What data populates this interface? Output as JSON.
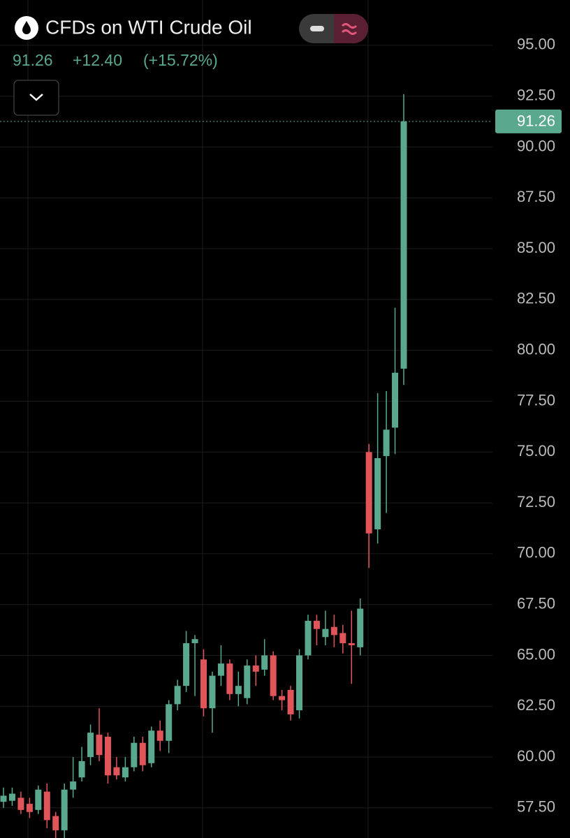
{
  "chart_data": {
    "type": "candlestick",
    "title": "CFDs on WTI Crude Oil",
    "last": {
      "value": 91.26,
      "label": "91.26"
    },
    "change": "+12.40",
    "change_pct": "(+15.72%)",
    "up_color": "#5aa98f",
    "down_color": "#e0555a",
    "grid": true,
    "ylim": [
      56.02,
      97.23
    ],
    "yticks": [
      {
        "value": 57.5,
        "label": "57.50"
      },
      {
        "value": 60,
        "label": "60.00"
      },
      {
        "value": 62.5,
        "label": "62.50"
      },
      {
        "value": 65,
        "label": "65.00"
      },
      {
        "value": 67.5,
        "label": "67.50"
      },
      {
        "value": 70,
        "label": "70.00"
      },
      {
        "value": 72.5,
        "label": "72.50"
      },
      {
        "value": 75,
        "label": "75.00"
      },
      {
        "value": 77.5,
        "label": "77.50"
      },
      {
        "value": 80,
        "label": "80.00"
      },
      {
        "value": 82.5,
        "label": "82.50"
      },
      {
        "value": 85,
        "label": "85.00"
      },
      {
        "value": 87.5,
        "label": "87.50"
      },
      {
        "value": 90,
        "label": "90.00"
      },
      {
        "value": 92.5,
        "label": "92.50"
      },
      {
        "value": 95,
        "label": "95.00"
      }
    ],
    "open": [
      57.8,
      57.85,
      58.0,
      57.7,
      57.4,
      58.3,
      57.1,
      56.4,
      58.4,
      59.0,
      60.0,
      61.1,
      61.0,
      59.5,
      59.0,
      59.5,
      60.7,
      59.7,
      61.3,
      60.8,
      62.6,
      63.5,
      65.6,
      64.8,
      62.4,
      64.0,
      64.6,
      63.1,
      62.9,
      64.5,
      64.3,
      65.0,
      63.0,
      63.3,
      62.3,
      65.0,
      66.7,
      65.9,
      66.4,
      66.1,
      65.6,
      65.4,
      75.0,
      71.2,
      74.8,
      76.2,
      79.1
    ],
    "high": [
      58.5,
      58.5,
      58.3,
      58.0,
      58.6,
      58.7,
      57.3,
      58.7,
      60.0,
      60.5,
      61.6,
      62.4,
      61.2,
      60.0,
      60.0,
      61.0,
      61.0,
      61.5,
      61.8,
      62.8,
      63.8,
      66.2,
      66.0,
      65.3,
      64.2,
      65.5,
      64.8,
      64.2,
      64.8,
      65.0,
      65.8,
      65.2,
      63.3,
      63.5,
      65.3,
      67.0,
      67.0,
      67.2,
      67.0,
      66.5,
      67.2,
      67.8,
      75.4,
      77.9,
      78.0,
      82.1,
      92.6
    ],
    "low": [
      57.5,
      57.6,
      57.2,
      57.0,
      57.2,
      56.5,
      56.0,
      55.9,
      58.0,
      58.8,
      59.6,
      59.8,
      58.7,
      58.9,
      58.8,
      59.3,
      59.3,
      59.5,
      60.3,
      60.2,
      62.3,
      63.2,
      63.0,
      62.0,
      61.2,
      63.5,
      62.8,
      62.5,
      62.6,
      63.5,
      64.0,
      62.8,
      62.3,
      61.8,
      61.9,
      64.8,
      65.5,
      65.5,
      65.4,
      65.1,
      63.6,
      65.0,
      69.3,
      70.5,
      72.0,
      74.9,
      78.3
    ],
    "close": [
      58.1,
      58.2,
      57.4,
      57.3,
      58.4,
      56.9,
      56.4,
      58.4,
      58.8,
      59.8,
      61.2,
      60.1,
      59.1,
      59.1,
      59.5,
      60.7,
      59.6,
      61.3,
      60.8,
      62.6,
      63.5,
      65.6,
      65.8,
      62.4,
      64.0,
      64.6,
      63.1,
      63.5,
      64.5,
      64.2,
      65.0,
      63.0,
      62.8,
      62.1,
      65.0,
      66.7,
      66.3,
      66.3,
      66.0,
      65.6,
      65.5,
      67.3,
      71.0,
      74.7,
      76.1,
      78.9,
      91.26
    ]
  }
}
